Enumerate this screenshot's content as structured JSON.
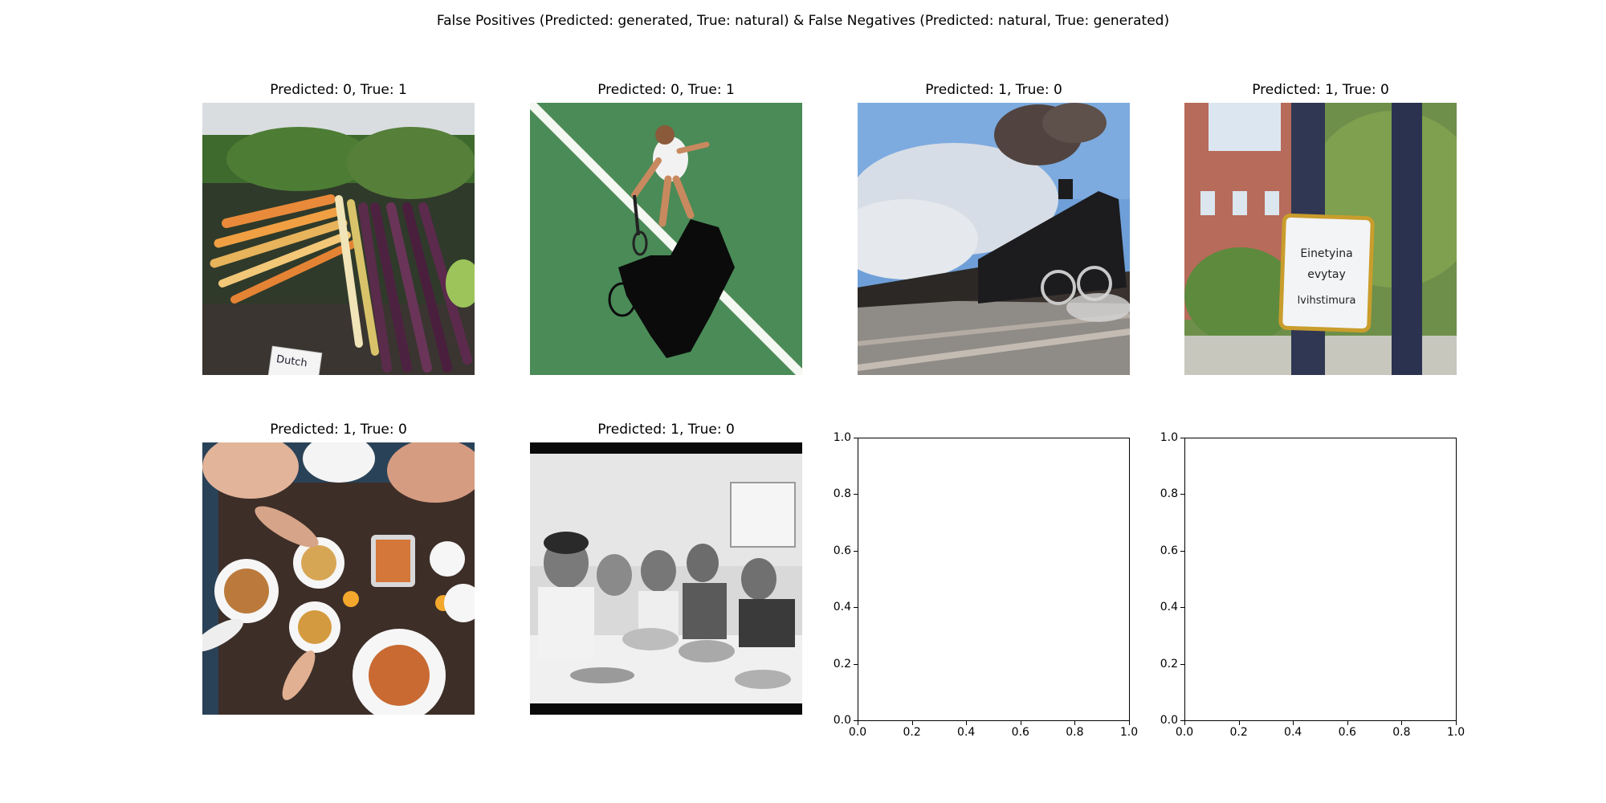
{
  "figure": {
    "title": "False Positives (Predicted: generated, True: natural) & False Negatives (Predicted: natural, True: generated)"
  },
  "chart_data": {
    "type": "image-grid",
    "title": "False Positives (Predicted: generated, True: natural) & False Negatives (Predicted: natural, True: generated)",
    "grid": {
      "rows": 2,
      "cols": 4
    },
    "panels": [
      {
        "title": "Predicted: 0, True: 1",
        "predicted": 0,
        "true": 1,
        "content": "carrots-photo",
        "sign_text": "Dutch\nCarr"
      },
      {
        "title": "Predicted: 0, True: 1",
        "predicted": 0,
        "true": 1,
        "content": "tennis-photo"
      },
      {
        "title": "Predicted: 1, True: 0",
        "predicted": 1,
        "true": 0,
        "content": "train-photo"
      },
      {
        "title": "Predicted: 1, True: 0",
        "predicted": 1,
        "true": 0,
        "content": "sign-photo",
        "sign_text": [
          "Einetyina",
          "evytay",
          "lvihstimura"
        ]
      },
      {
        "title": "Predicted: 1, True: 0",
        "predicted": 1,
        "true": 0,
        "content": "food-table-photo"
      },
      {
        "title": "Predicted: 1, True: 0",
        "predicted": 1,
        "true": 0,
        "content": "kitchen-bw-photo"
      }
    ],
    "empty_axes": [
      {
        "xlim": [
          0,
          1
        ],
        "ylim": [
          0,
          1
        ],
        "xticks": [
          "0.0",
          "0.2",
          "0.4",
          "0.6",
          "0.8",
          "1.0"
        ],
        "yticks": [
          "0.0",
          "0.2",
          "0.4",
          "0.6",
          "0.8",
          "1.0"
        ]
      },
      {
        "xlim": [
          0,
          1
        ],
        "ylim": [
          0,
          1
        ],
        "xticks": [
          "0.0",
          "0.2",
          "0.4",
          "0.6",
          "0.8",
          "1.0"
        ],
        "yticks": [
          "0.0",
          "0.2",
          "0.4",
          "0.6",
          "0.8",
          "1.0"
        ]
      }
    ]
  }
}
